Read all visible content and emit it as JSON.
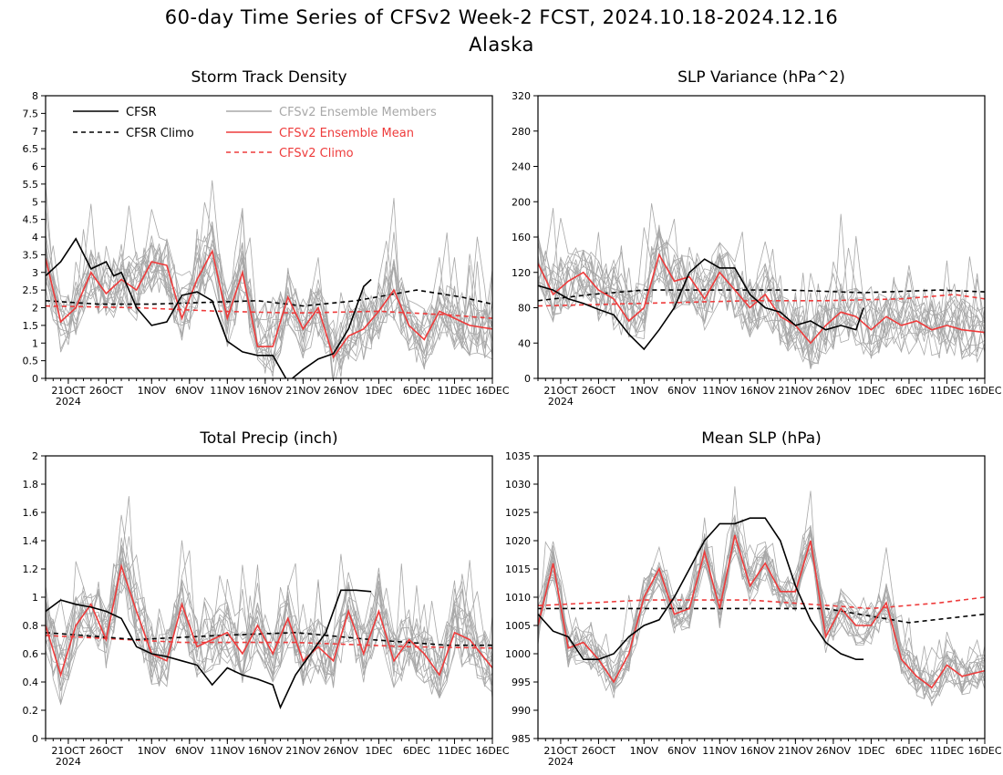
{
  "title": {
    "line1": "60-day Time Series of CFSv2 Week-2 FCST, 2024.10.18-2024.12.16",
    "line2": "Alaska"
  },
  "colors": {
    "cfsr": "#000000",
    "members": "#a8a8a8",
    "mean": "#ee3b3b"
  },
  "legend": {
    "items": [
      {
        "label": "CFSR",
        "color": "#000000",
        "dashed": false
      },
      {
        "label": "CFSR Climo",
        "color": "#000000",
        "dashed": true
      },
      {
        "label": "CFSv2 Ensemble Members",
        "color": "#a8a8a8",
        "dashed": false
      },
      {
        "label": "CFSv2 Ensemble Mean",
        "color": "#ee3b3b",
        "dashed": false
      },
      {
        "label": "CFSv2 Climo",
        "color": "#ee3b3b",
        "dashed": true
      }
    ]
  },
  "x_axis": {
    "start_date": "2024-10-18",
    "end_date": "2024-12-16",
    "tick_labels": [
      "21OCT",
      "26OCT",
      "1NOV",
      "6NOV",
      "11NOV",
      "16NOV",
      "21NOV",
      "26NOV",
      "1DEC",
      "6DEC",
      "11DEC",
      "16DEC"
    ],
    "year_label": "2024"
  },
  "chart_data": [
    {
      "type": "line",
      "title": "Storm Track Density",
      "ylim": [
        0,
        8
      ],
      "yticks": [
        "0",
        "0.5",
        "1",
        "1.5",
        "2",
        "2.5",
        "3",
        "3.5",
        "4",
        "4.5",
        "5",
        "5.5",
        "6",
        "6.5",
        "7",
        "7.5",
        "8"
      ],
      "series": [
        {
          "name": "CFSR",
          "dates": [
            "2024-10-18",
            "2024-10-20",
            "2024-10-22",
            "2024-10-24",
            "2024-10-26",
            "2024-10-27",
            "2024-10-28",
            "2024-10-30",
            "2024-11-01",
            "2024-11-03",
            "2024-11-05",
            "2024-11-07",
            "2024-11-09",
            "2024-11-11",
            "2024-11-13",
            "2024-11-15",
            "2024-11-17",
            "2024-11-19",
            "2024-11-21",
            "2024-11-23",
            "2024-11-25",
            "2024-11-27",
            "2024-11-29",
            "2024-11-30"
          ],
          "values": [
            2.9,
            3.3,
            3.95,
            3.1,
            3.3,
            2.9,
            3.0,
            2.0,
            1.5,
            1.6,
            2.35,
            2.45,
            2.2,
            1.05,
            0.75,
            0.65,
            0.65,
            -0.1,
            0.25,
            0.55,
            0.7,
            1.4,
            2.6,
            2.8
          ]
        },
        {
          "name": "CFSR Climo",
          "dates": [
            "2024-10-18",
            "2024-10-25",
            "2024-11-01",
            "2024-11-08",
            "2024-11-15",
            "2024-11-21",
            "2024-11-28",
            "2024-12-06",
            "2024-12-12",
            "2024-12-16"
          ],
          "values": [
            2.2,
            2.1,
            2.1,
            2.15,
            2.2,
            2.05,
            2.2,
            2.5,
            2.3,
            2.1
          ]
        },
        {
          "name": "CFSv2 Ensemble Mean",
          "dates": [
            "2024-10-18",
            "2024-10-20",
            "2024-10-22",
            "2024-10-24",
            "2024-10-26",
            "2024-10-28",
            "2024-10-30",
            "2024-11-01",
            "2024-11-03",
            "2024-11-05",
            "2024-11-07",
            "2024-11-09",
            "2024-11-11",
            "2024-11-13",
            "2024-11-15",
            "2024-11-17",
            "2024-11-19",
            "2024-11-21",
            "2024-11-23",
            "2024-11-25",
            "2024-11-27",
            "2024-11-29",
            "2024-12-01",
            "2024-12-03",
            "2024-12-05",
            "2024-12-07",
            "2024-12-09",
            "2024-12-11",
            "2024-12-13",
            "2024-12-16"
          ],
          "values": [
            3.4,
            1.6,
            2.0,
            3.0,
            2.4,
            2.8,
            2.5,
            3.3,
            3.2,
            1.7,
            2.8,
            3.6,
            1.7,
            3.0,
            0.9,
            0.9,
            2.3,
            1.4,
            2.0,
            0.6,
            1.2,
            1.4,
            1.9,
            2.5,
            1.5,
            1.1,
            1.9,
            1.7,
            1.5,
            1.4
          ]
        },
        {
          "name": "CFSv2 Climo",
          "dates": [
            "2024-10-18",
            "2024-10-30",
            "2024-11-10",
            "2024-11-20",
            "2024-12-01",
            "2024-12-10",
            "2024-12-16"
          ],
          "values": [
            2.05,
            2.0,
            1.9,
            1.85,
            1.9,
            1.8,
            1.7
          ]
        }
      ]
    },
    {
      "type": "line",
      "title": "SLP Variance (hPa^2)",
      "ylim": [
        0,
        320
      ],
      "yticks": [
        "0",
        "40",
        "80",
        "120",
        "160",
        "200",
        "240",
        "280",
        "320"
      ],
      "series": [
        {
          "name": "CFSR",
          "dates": [
            "2024-10-18",
            "2024-10-20",
            "2024-10-22",
            "2024-10-24",
            "2024-10-26",
            "2024-10-28",
            "2024-10-30",
            "2024-11-01",
            "2024-11-03",
            "2024-11-05",
            "2024-11-07",
            "2024-11-09",
            "2024-11-11",
            "2024-11-13",
            "2024-11-15",
            "2024-11-17",
            "2024-11-19",
            "2024-11-21",
            "2024-11-23",
            "2024-11-25",
            "2024-11-27",
            "2024-11-29",
            "2024-11-30"
          ],
          "values": [
            105,
            100,
            90,
            85,
            78,
            72,
            50,
            33,
            55,
            80,
            120,
            135,
            125,
            125,
            95,
            80,
            75,
            60,
            65,
            55,
            60,
            55,
            80
          ]
        },
        {
          "name": "CFSR Climo",
          "dates": [
            "2024-10-18",
            "2024-10-25",
            "2024-11-01",
            "2024-11-10",
            "2024-11-20",
            "2024-11-30",
            "2024-12-10",
            "2024-12-16"
          ],
          "values": [
            88,
            95,
            100,
            100,
            100,
            97,
            100,
            98
          ]
        },
        {
          "name": "CFSv2 Ensemble Mean",
          "dates": [
            "2024-10-18",
            "2024-10-20",
            "2024-10-22",
            "2024-10-24",
            "2024-10-26",
            "2024-10-28",
            "2024-10-30",
            "2024-11-01",
            "2024-11-03",
            "2024-11-05",
            "2024-11-07",
            "2024-11-09",
            "2024-11-11",
            "2024-11-13",
            "2024-11-15",
            "2024-11-17",
            "2024-11-19",
            "2024-11-21",
            "2024-11-23",
            "2024-11-25",
            "2024-11-27",
            "2024-11-29",
            "2024-12-01",
            "2024-12-03",
            "2024-12-05",
            "2024-12-07",
            "2024-12-09",
            "2024-12-11",
            "2024-12-13",
            "2024-12-16"
          ],
          "values": [
            130,
            95,
            110,
            120,
            100,
            90,
            65,
            80,
            140,
            110,
            115,
            90,
            120,
            100,
            80,
            95,
            70,
            60,
            40,
            60,
            75,
            70,
            55,
            70,
            60,
            65,
            55,
            60,
            55,
            52
          ]
        },
        {
          "name": "CFSv2 Climo",
          "dates": [
            "2024-10-18",
            "2024-11-01",
            "2024-11-15",
            "2024-11-25",
            "2024-12-05",
            "2024-12-12",
            "2024-12-16"
          ],
          "values": [
            82,
            85,
            88,
            88,
            90,
            95,
            90
          ]
        }
      ]
    },
    {
      "type": "line",
      "title": "Total Precip (inch)",
      "ylim": [
        0,
        2
      ],
      "yticks": [
        "0",
        "0.2",
        "0.4",
        "0.6",
        "0.8",
        "1",
        "1.2",
        "1.4",
        "1.6",
        "1.8",
        "2"
      ],
      "series": [
        {
          "name": "CFSR",
          "dates": [
            "2024-10-18",
            "2024-10-20",
            "2024-10-22",
            "2024-10-24",
            "2024-10-26",
            "2024-10-28",
            "2024-10-30",
            "2024-11-01",
            "2024-11-03",
            "2024-11-05",
            "2024-11-07",
            "2024-11-09",
            "2024-11-11",
            "2024-11-13",
            "2024-11-15",
            "2024-11-17",
            "2024-11-18",
            "2024-11-20",
            "2024-11-22",
            "2024-11-24",
            "2024-11-26",
            "2024-11-28",
            "2024-11-30"
          ],
          "values": [
            0.9,
            0.98,
            0.95,
            0.93,
            0.9,
            0.85,
            0.65,
            0.6,
            0.58,
            0.55,
            0.52,
            0.38,
            0.5,
            0.45,
            0.42,
            0.38,
            0.22,
            0.45,
            0.6,
            0.75,
            1.05,
            1.05,
            1.04
          ]
        },
        {
          "name": "CFSR Climo",
          "dates": [
            "2024-10-18",
            "2024-10-30",
            "2024-11-10",
            "2024-11-20",
            "2024-11-30",
            "2024-12-10",
            "2024-12-16"
          ],
          "values": [
            0.75,
            0.7,
            0.73,
            0.75,
            0.7,
            0.66,
            0.66
          ]
        },
        {
          "name": "CFSv2 Ensemble Mean",
          "dates": [
            "2024-10-18",
            "2024-10-20",
            "2024-10-22",
            "2024-10-24",
            "2024-10-26",
            "2024-10-28",
            "2024-10-30",
            "2024-11-01",
            "2024-11-03",
            "2024-11-05",
            "2024-11-07",
            "2024-11-09",
            "2024-11-11",
            "2024-11-13",
            "2024-11-15",
            "2024-11-17",
            "2024-11-19",
            "2024-11-21",
            "2024-11-23",
            "2024-11-25",
            "2024-11-27",
            "2024-11-29",
            "2024-12-01",
            "2024-12-03",
            "2024-12-05",
            "2024-12-07",
            "2024-12-09",
            "2024-12-11",
            "2024-12-13",
            "2024-12-16"
          ],
          "values": [
            0.8,
            0.45,
            0.8,
            0.95,
            0.7,
            1.22,
            0.9,
            0.6,
            0.55,
            0.95,
            0.65,
            0.7,
            0.75,
            0.6,
            0.8,
            0.6,
            0.85,
            0.55,
            0.65,
            0.55,
            0.9,
            0.6,
            0.9,
            0.55,
            0.7,
            0.6,
            0.45,
            0.75,
            0.7,
            0.5
          ]
        },
        {
          "name": "CFSv2 Climo",
          "dates": [
            "2024-10-18",
            "2024-11-05",
            "2024-11-20",
            "2024-12-05",
            "2024-12-16"
          ],
          "values": [
            0.73,
            0.68,
            0.68,
            0.65,
            0.64
          ]
        }
      ]
    },
    {
      "type": "line",
      "title": "Mean SLP (hPa)",
      "ylim": [
        985,
        1035
      ],
      "yticks": [
        "985",
        "990",
        "995",
        "1000",
        "1005",
        "1010",
        "1015",
        "1020",
        "1025",
        "1030",
        "1035"
      ],
      "series": [
        {
          "name": "CFSR",
          "dates": [
            "2024-10-18",
            "2024-10-20",
            "2024-10-22",
            "2024-10-24",
            "2024-10-26",
            "2024-10-28",
            "2024-10-30",
            "2024-11-01",
            "2024-11-03",
            "2024-11-05",
            "2024-11-07",
            "2024-11-09",
            "2024-11-11",
            "2024-11-13",
            "2024-11-15",
            "2024-11-17",
            "2024-11-19",
            "2024-11-21",
            "2024-11-23",
            "2024-11-25",
            "2024-11-27",
            "2024-11-29",
            "2024-11-30"
          ],
          "values": [
            1007,
            1004,
            1003,
            999,
            999,
            1000,
            1003,
            1005,
            1006,
            1010,
            1015,
            1020,
            1023,
            1023,
            1024,
            1024,
            1020,
            1012,
            1006,
            1002,
            1000,
            999,
            999
          ]
        },
        {
          "name": "CFSR Climo",
          "dates": [
            "2024-10-18",
            "2024-11-01",
            "2024-11-15",
            "2024-11-25",
            "2024-12-06",
            "2024-12-16"
          ],
          "values": [
            1008,
            1008,
            1008,
            1008,
            1005.5,
            1007
          ]
        },
        {
          "name": "CFSv2 Ensemble Mean",
          "dates": [
            "2024-10-18",
            "2024-10-20",
            "2024-10-22",
            "2024-10-24",
            "2024-10-26",
            "2024-10-28",
            "2024-10-30",
            "2024-11-01",
            "2024-11-03",
            "2024-11-05",
            "2024-11-07",
            "2024-11-09",
            "2024-11-11",
            "2024-11-13",
            "2024-11-15",
            "2024-11-17",
            "2024-11-19",
            "2024-11-21",
            "2024-11-23",
            "2024-11-25",
            "2024-11-27",
            "2024-11-29",
            "2024-12-01",
            "2024-12-03",
            "2024-12-05",
            "2024-12-07",
            "2024-12-09",
            "2024-12-11",
            "2024-12-13",
            "2024-12-16"
          ],
          "values": [
            1005,
            1016,
            1001,
            1002,
            999,
            995,
            1000,
            1010,
            1015,
            1007,
            1008,
            1018,
            1008,
            1021,
            1012,
            1016,
            1011,
            1011,
            1020,
            1003,
            1008,
            1005,
            1005,
            1009,
            999,
            996,
            994,
            998,
            996,
            997
          ]
        },
        {
          "name": "CFSv2 Climo",
          "dates": [
            "2024-10-18",
            "2024-11-01",
            "2024-11-15",
            "2024-12-01",
            "2024-12-10",
            "2024-12-16"
          ],
          "values": [
            1008.5,
            1009.5,
            1009.5,
            1008,
            1009,
            1010
          ]
        }
      ]
    }
  ]
}
